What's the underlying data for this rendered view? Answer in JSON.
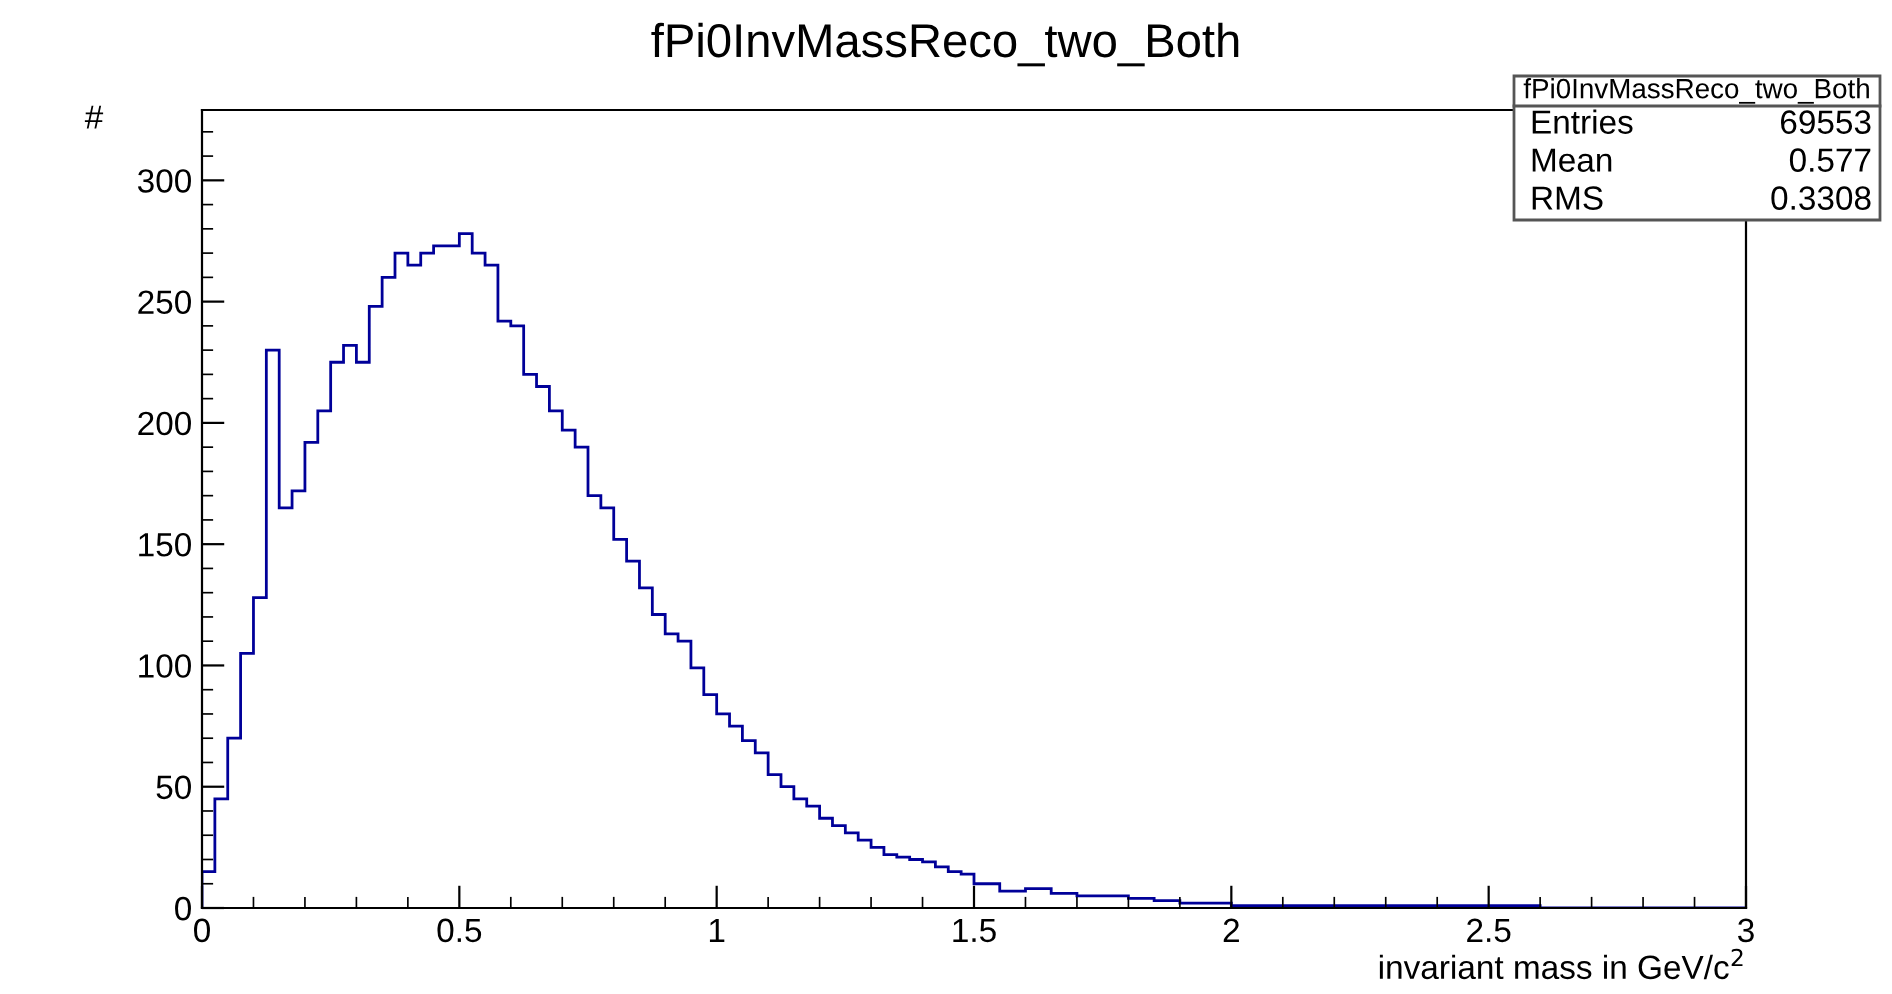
{
  "chart_data": {
    "type": "histogram",
    "title": "fPi0InvMassReco_two_Both",
    "xlabel": "invariant mass in GeV/c$^{2}$",
    "ylabel": "#",
    "color": "#000099",
    "bins": [
      0,
      0.025,
      0.05,
      0.075,
      0.1,
      0.125,
      0.15,
      0.175,
      0.2,
      0.225,
      0.25,
      0.275,
      0.3,
      0.325,
      0.35,
      0.375,
      0.4,
      0.425,
      0.45,
      0.475,
      0.5,
      0.525,
      0.55,
      0.575,
      0.6,
      0.625,
      0.65,
      0.675,
      0.7,
      0.725,
      0.75,
      0.775,
      0.8,
      0.825,
      0.85,
      0.875,
      0.9,
      0.925,
      0.95,
      0.975,
      1.0,
      1.025,
      1.05,
      1.075,
      1.1,
      1.125,
      1.15,
      1.175,
      1.2,
      1.225,
      1.25,
      1.275,
      1.3,
      1.325,
      1.35,
      1.375,
      1.4,
      1.425,
      1.45,
      1.475,
      1.5,
      1.55,
      1.6,
      1.65,
      1.7,
      1.75,
      1.8,
      1.85,
      1.9,
      1.95,
      2.0,
      2.1,
      2.2,
      2.3,
      2.4,
      2.5,
      2.6,
      2.7,
      2.8,
      2.9,
      3.0
    ],
    "values": [
      15,
      45,
      70,
      105,
      128,
      230,
      165,
      172,
      192,
      205,
      225,
      232,
      225,
      248,
      260,
      270,
      265,
      270,
      273,
      273,
      278,
      270,
      265,
      242,
      240,
      220,
      215,
      205,
      197,
      190,
      170,
      165,
      152,
      143,
      132,
      121,
      113,
      110,
      99,
      88,
      80,
      75,
      69,
      64,
      55,
      50,
      45,
      42,
      37,
      34,
      31,
      28,
      25,
      22,
      21,
      20,
      19,
      17,
      15,
      14,
      10,
      7,
      8,
      6,
      5,
      5,
      4,
      3,
      2,
      2,
      1,
      1,
      1,
      1,
      1,
      1,
      0,
      0,
      0,
      0
    ],
    "xlim": [
      0,
      3
    ],
    "xticks": [
      0,
      0.5,
      1,
      1.5,
      2,
      2.5,
      3
    ],
    "ylim": [
      0,
      329
    ],
    "yticks": [
      0,
      50,
      100,
      150,
      200,
      250,
      300
    ],
    "grid": false,
    "annotations": [
      "fPi0InvMassReco_two_Both",
      "Entries",
      "69553",
      "Mean",
      "0.577",
      "RMS",
      "0.3308"
    ]
  }
}
